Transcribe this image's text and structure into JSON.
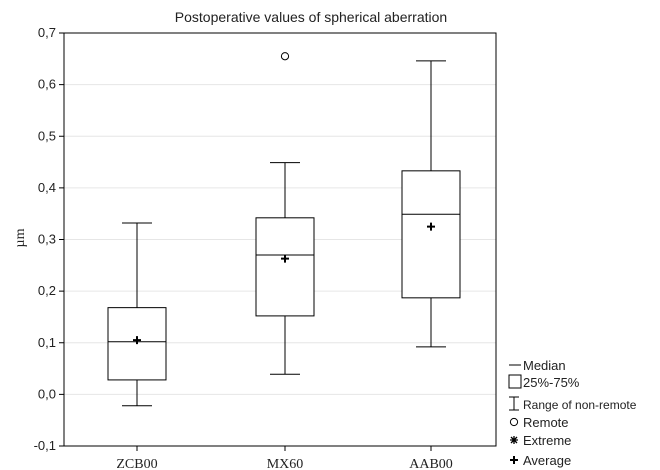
{
  "chart_data": {
    "type": "box",
    "title": "Postoperative values of spherical aberration",
    "xlabel": "",
    "ylabel": "µm",
    "ylim": [
      -0.1,
      0.7
    ],
    "yticks": [
      -0.1,
      0.0,
      0.1,
      0.2,
      0.3,
      0.4,
      0.5,
      0.6,
      0.7
    ],
    "ytick_labels": [
      "-0,1",
      "0,0",
      "0,1",
      "0,2",
      "0,3",
      "0,4",
      "0,5",
      "0,6",
      "0,7"
    ],
    "grid": true,
    "legend_position": "bottom-right",
    "categories": [
      "ZCB00",
      "MX60",
      "AAB00"
    ],
    "boxes": [
      {
        "category": "ZCB00",
        "whisker_low": -0.022,
        "q1": 0.028,
        "median": 0.102,
        "q3": 0.168,
        "whisker_high": 0.332,
        "mean": 0.105,
        "remote": [],
        "extreme": []
      },
      {
        "category": "MX60",
        "whisker_low": 0.039,
        "q1": 0.152,
        "median": 0.27,
        "q3": 0.342,
        "whisker_high": 0.449,
        "mean": 0.263,
        "remote": [
          0.655
        ],
        "extreme": []
      },
      {
        "category": "AAB00",
        "whisker_low": 0.092,
        "q1": 0.187,
        "median": 0.349,
        "q3": 0.433,
        "whisker_high": 0.646,
        "mean": 0.325,
        "remote": [],
        "extreme": []
      }
    ],
    "legend": [
      {
        "symbol": "median-line",
        "label": "Median"
      },
      {
        "symbol": "box",
        "label": "25%-75%"
      },
      {
        "symbol": "whisker",
        "label": "Range of non-remote"
      },
      {
        "symbol": "circle",
        "label": "Remote"
      },
      {
        "symbol": "asterisk",
        "label": "Extreme"
      },
      {
        "symbol": "plus",
        "label": "Average"
      }
    ]
  }
}
